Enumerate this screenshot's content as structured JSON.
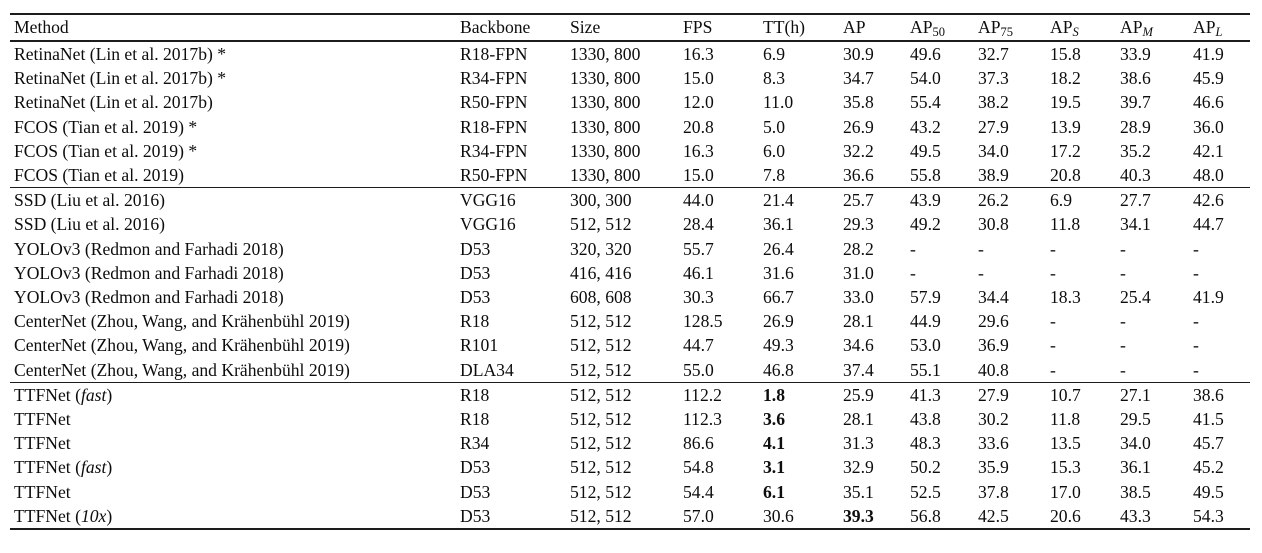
{
  "table": {
    "headers": [
      {
        "text": "Method",
        "sub": "",
        "italic_sub": false
      },
      {
        "text": "Backbone",
        "sub": "",
        "italic_sub": false
      },
      {
        "text": "Size",
        "sub": "",
        "italic_sub": false
      },
      {
        "text": "FPS",
        "sub": "",
        "italic_sub": false
      },
      {
        "text": "TT(h)",
        "sub": "",
        "italic_sub": false
      },
      {
        "text": "AP",
        "sub": "",
        "italic_sub": false
      },
      {
        "text": "AP",
        "sub": "50",
        "italic_sub": false
      },
      {
        "text": "AP",
        "sub": "75",
        "italic_sub": false
      },
      {
        "text": "AP",
        "sub": "S",
        "italic_sub": true
      },
      {
        "text": "AP",
        "sub": "M",
        "italic_sub": true
      },
      {
        "text": "AP",
        "sub": "L",
        "italic_sub": true
      }
    ],
    "sections": [
      {
        "rows": [
          [
            "RetinaNet (Lin et al. 2017b) *",
            "R18-FPN",
            "1330, 800",
            "16.3",
            "6.9",
            "30.9",
            "49.6",
            "32.7",
            "15.8",
            "33.9",
            "41.9"
          ],
          [
            "RetinaNet (Lin et al. 2017b) *",
            "R34-FPN",
            "1330, 800",
            "15.0",
            "8.3",
            "34.7",
            "54.0",
            "37.3",
            "18.2",
            "38.6",
            "45.9"
          ],
          [
            "RetinaNet (Lin et al. 2017b)",
            "R50-FPN",
            "1330, 800",
            "12.0",
            "11.0",
            "35.8",
            "55.4",
            "38.2",
            "19.5",
            "39.7",
            "46.6"
          ],
          [
            "FCOS (Tian et al. 2019) *",
            "R18-FPN",
            "1330, 800",
            "20.8",
            "5.0",
            "26.9",
            "43.2",
            "27.9",
            "13.9",
            "28.9",
            "36.0"
          ],
          [
            "FCOS (Tian et al. 2019) *",
            "R34-FPN",
            "1330, 800",
            "16.3",
            "6.0",
            "32.2",
            "49.5",
            "34.0",
            "17.2",
            "35.2",
            "42.1"
          ],
          [
            "FCOS (Tian et al. 2019)",
            "R50-FPN",
            "1330, 800",
            "15.0",
            "7.8",
            "36.6",
            "55.8",
            "38.9",
            "20.8",
            "40.3",
            "48.0"
          ]
        ]
      },
      {
        "rows": [
          [
            "SSD (Liu et al. 2016)",
            "VGG16",
            "300, 300",
            "44.0",
            "21.4",
            "25.7",
            "43.9",
            "26.2",
            "6.9",
            "27.7",
            "42.6"
          ],
          [
            "SSD (Liu et al. 2016)",
            "VGG16",
            "512, 512",
            "28.4",
            "36.1",
            "29.3",
            "49.2",
            "30.8",
            "11.8",
            "34.1",
            "44.7"
          ],
          [
            "YOLOv3 (Redmon and Farhadi 2018)",
            "D53",
            "320, 320",
            "55.7",
            "26.4",
            "28.2",
            "-",
            "-",
            "-",
            "-",
            "-"
          ],
          [
            "YOLOv3 (Redmon and Farhadi 2018)",
            "D53",
            "416, 416",
            "46.1",
            "31.6",
            "31.0",
            "-",
            "-",
            "-",
            "-",
            "-"
          ],
          [
            "YOLOv3 (Redmon and Farhadi 2018)",
            "D53",
            "608, 608",
            "30.3",
            "66.7",
            "33.0",
            "57.9",
            "34.4",
            "18.3",
            "25.4",
            "41.9"
          ],
          [
            "CenterNet (Zhou, Wang, and Krähenbühl 2019)",
            "R18",
            "512, 512",
            "128.5",
            "26.9",
            "28.1",
            "44.9",
            "29.6",
            "-",
            "-",
            "-"
          ],
          [
            "CenterNet (Zhou, Wang, and Krähenbühl 2019)",
            "R101",
            "512, 512",
            "44.7",
            "49.3",
            "34.6",
            "53.0",
            "36.9",
            "-",
            "-",
            "-"
          ],
          [
            "CenterNet (Zhou, Wang, and Krähenbühl 2019)",
            "DLA34",
            "512, 512",
            "55.0",
            "46.8",
            "37.4",
            "55.1",
            "40.8",
            "-",
            "-",
            "-"
          ]
        ]
      },
      {
        "rows": [
          [
            "TTFNet (*fast*)",
            "R18",
            "512, 512",
            "112.2",
            "**1.8**",
            "25.9",
            "41.3",
            "27.9",
            "10.7",
            "27.1",
            "38.6"
          ],
          [
            "TTFNet",
            "R18",
            "512, 512",
            "112.3",
            "**3.6**",
            "28.1",
            "43.8",
            "30.2",
            "11.8",
            "29.5",
            "41.5"
          ],
          [
            "TTFNet",
            "R34",
            "512, 512",
            "86.6",
            "**4.1**",
            "31.3",
            "48.3",
            "33.6",
            "13.5",
            "34.0",
            "45.7"
          ],
          [
            "TTFNet (*fast*)",
            "D53",
            "512, 512",
            "54.8",
            "**3.1**",
            "32.9",
            "50.2",
            "35.9",
            "15.3",
            "36.1",
            "45.2"
          ],
          [
            "TTFNet",
            "D53",
            "512, 512",
            "54.4",
            "**6.1**",
            "35.1",
            "52.5",
            "37.8",
            "17.0",
            "38.5",
            "49.5"
          ],
          [
            "TTFNet (*10x*)",
            "D53",
            "512, 512",
            "57.0",
            "30.6",
            "**39.3**",
            "56.8",
            "42.5",
            "20.6",
            "43.3",
            "54.3"
          ]
        ]
      }
    ]
  }
}
